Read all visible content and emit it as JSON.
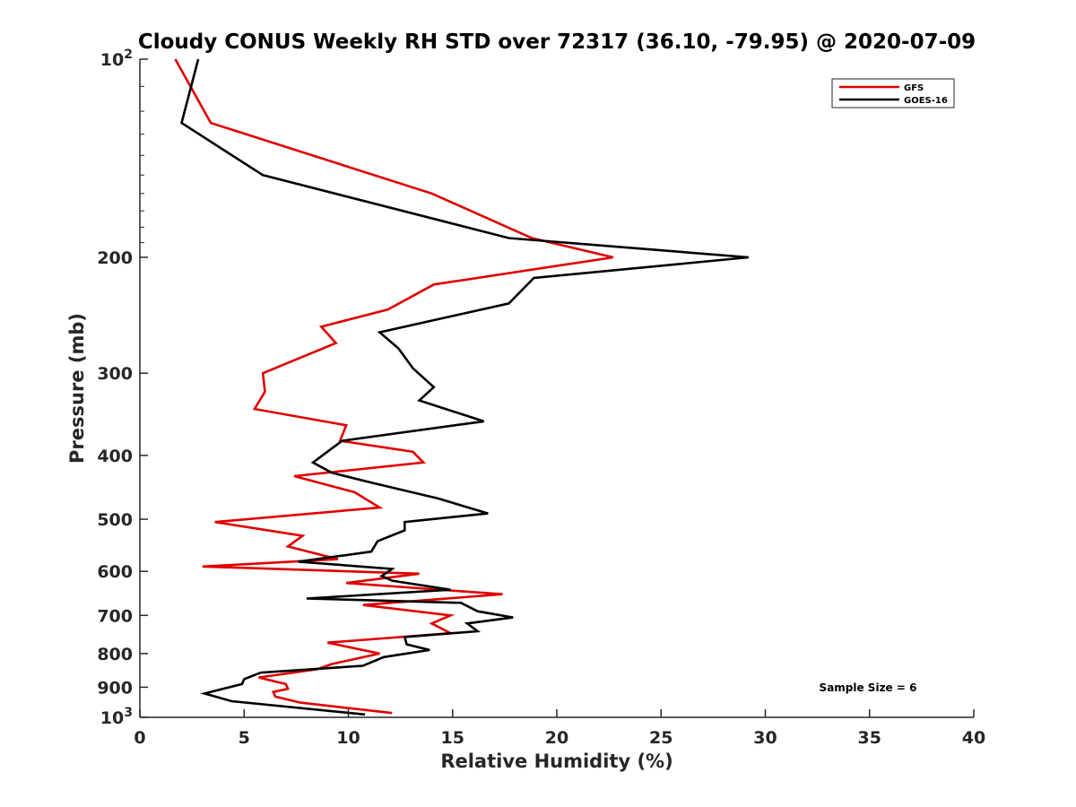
{
  "chart_data": {
    "type": "line",
    "title": "Cloudy CONUS Weekly RH STD over 72317 (36.10, -79.95) @ 2020-07-09",
    "xlabel": "Relative Humidity (%)",
    "ylabel": "Pressure (mb)",
    "xlim": [
      0,
      40
    ],
    "ylim": [
      100,
      1000
    ],
    "y_scale": "log",
    "y_reversed": true,
    "grid": false,
    "legend_position": "top-right",
    "x_ticks": [
      "0",
      "5",
      "10",
      "15",
      "20",
      "25",
      "30",
      "35",
      "40"
    ],
    "y_ticks": [
      {
        "value": 100,
        "label": "10",
        "sup": "2"
      },
      {
        "value": 200,
        "label": "200",
        "sup": ""
      },
      {
        "value": 300,
        "label": "300",
        "sup": ""
      },
      {
        "value": 400,
        "label": "400",
        "sup": ""
      },
      {
        "value": 500,
        "label": "500",
        "sup": ""
      },
      {
        "value": 600,
        "label": "600",
        "sup": ""
      },
      {
        "value": 700,
        "label": "700",
        "sup": ""
      },
      {
        "value": 800,
        "label": "800",
        "sup": ""
      },
      {
        "value": 900,
        "label": "900",
        "sup": ""
      },
      {
        "value": 1000,
        "label": "10",
        "sup": "3"
      }
    ],
    "series": [
      {
        "name": "GFS",
        "color": "#e00000",
        "points": [
          [
            1.7,
            100
          ],
          [
            3.4,
            125
          ],
          [
            14,
            160
          ],
          [
            18.8,
            187
          ],
          [
            22.7,
            200
          ],
          [
            14.1,
            220
          ],
          [
            11.9,
            240
          ],
          [
            8.7,
            255
          ],
          [
            9.4,
            270
          ],
          [
            5.9,
            300
          ],
          [
            6.0,
            320
          ],
          [
            5.5,
            340
          ],
          [
            9.9,
            360
          ],
          [
            9.6,
            380
          ],
          [
            13.1,
            395
          ],
          [
            13.6,
            410
          ],
          [
            7.4,
            430
          ],
          [
            10.3,
            455
          ],
          [
            11.5,
            480
          ],
          [
            3.6,
            505
          ],
          [
            7.8,
            530
          ],
          [
            7.1,
            550
          ],
          [
            9.5,
            575
          ],
          [
            3.0,
            590
          ],
          [
            13.4,
            605
          ],
          [
            9.9,
            625
          ],
          [
            17.4,
            650
          ],
          [
            10.7,
            675
          ],
          [
            14.9,
            700
          ],
          [
            14.0,
            720
          ],
          [
            14.9,
            745
          ],
          [
            9.0,
            770
          ],
          [
            11.5,
            800
          ],
          [
            9.2,
            830
          ],
          [
            8.5,
            845
          ],
          [
            5.7,
            870
          ],
          [
            7.0,
            890
          ],
          [
            7.1,
            905
          ],
          [
            6.4,
            915
          ],
          [
            6.5,
            930
          ],
          [
            7.7,
            950
          ],
          [
            12.1,
            985
          ]
        ]
      },
      {
        "name": "GOES-16",
        "color": "#000000",
        "points": [
          [
            2.8,
            100
          ],
          [
            2.0,
            125
          ],
          [
            5.9,
            150
          ],
          [
            17.7,
            187
          ],
          [
            29.2,
            200
          ],
          [
            18.9,
            215
          ],
          [
            17.7,
            235
          ],
          [
            11.5,
            260
          ],
          [
            12.4,
            275
          ],
          [
            13.1,
            295
          ],
          [
            14.1,
            315
          ],
          [
            13.4,
            330
          ],
          [
            16.5,
            355
          ],
          [
            9.7,
            380
          ],
          [
            8.3,
            410
          ],
          [
            9.2,
            425
          ],
          [
            11.1,
            440
          ],
          [
            14.3,
            465
          ],
          [
            16.7,
            490
          ],
          [
            12.7,
            505
          ],
          [
            12.7,
            520
          ],
          [
            11.4,
            540
          ],
          [
            11.1,
            560
          ],
          [
            7.6,
            580
          ],
          [
            12.1,
            595
          ],
          [
            11.6,
            610
          ],
          [
            12.1,
            620
          ],
          [
            14.9,
            640
          ],
          [
            8.0,
            660
          ],
          [
            15.4,
            670
          ],
          [
            16.2,
            690
          ],
          [
            17.9,
            705
          ],
          [
            15.7,
            720
          ],
          [
            16.2,
            740
          ],
          [
            12.7,
            755
          ],
          [
            12.8,
            775
          ],
          [
            13.9,
            790
          ],
          [
            11.7,
            810
          ],
          [
            10.7,
            835
          ],
          [
            5.8,
            855
          ],
          [
            5.0,
            875
          ],
          [
            4.9,
            890
          ],
          [
            3.1,
            920
          ],
          [
            4.4,
            945
          ],
          [
            10.8,
            990
          ]
        ]
      }
    ],
    "annotation": "Sample Size = 6"
  }
}
